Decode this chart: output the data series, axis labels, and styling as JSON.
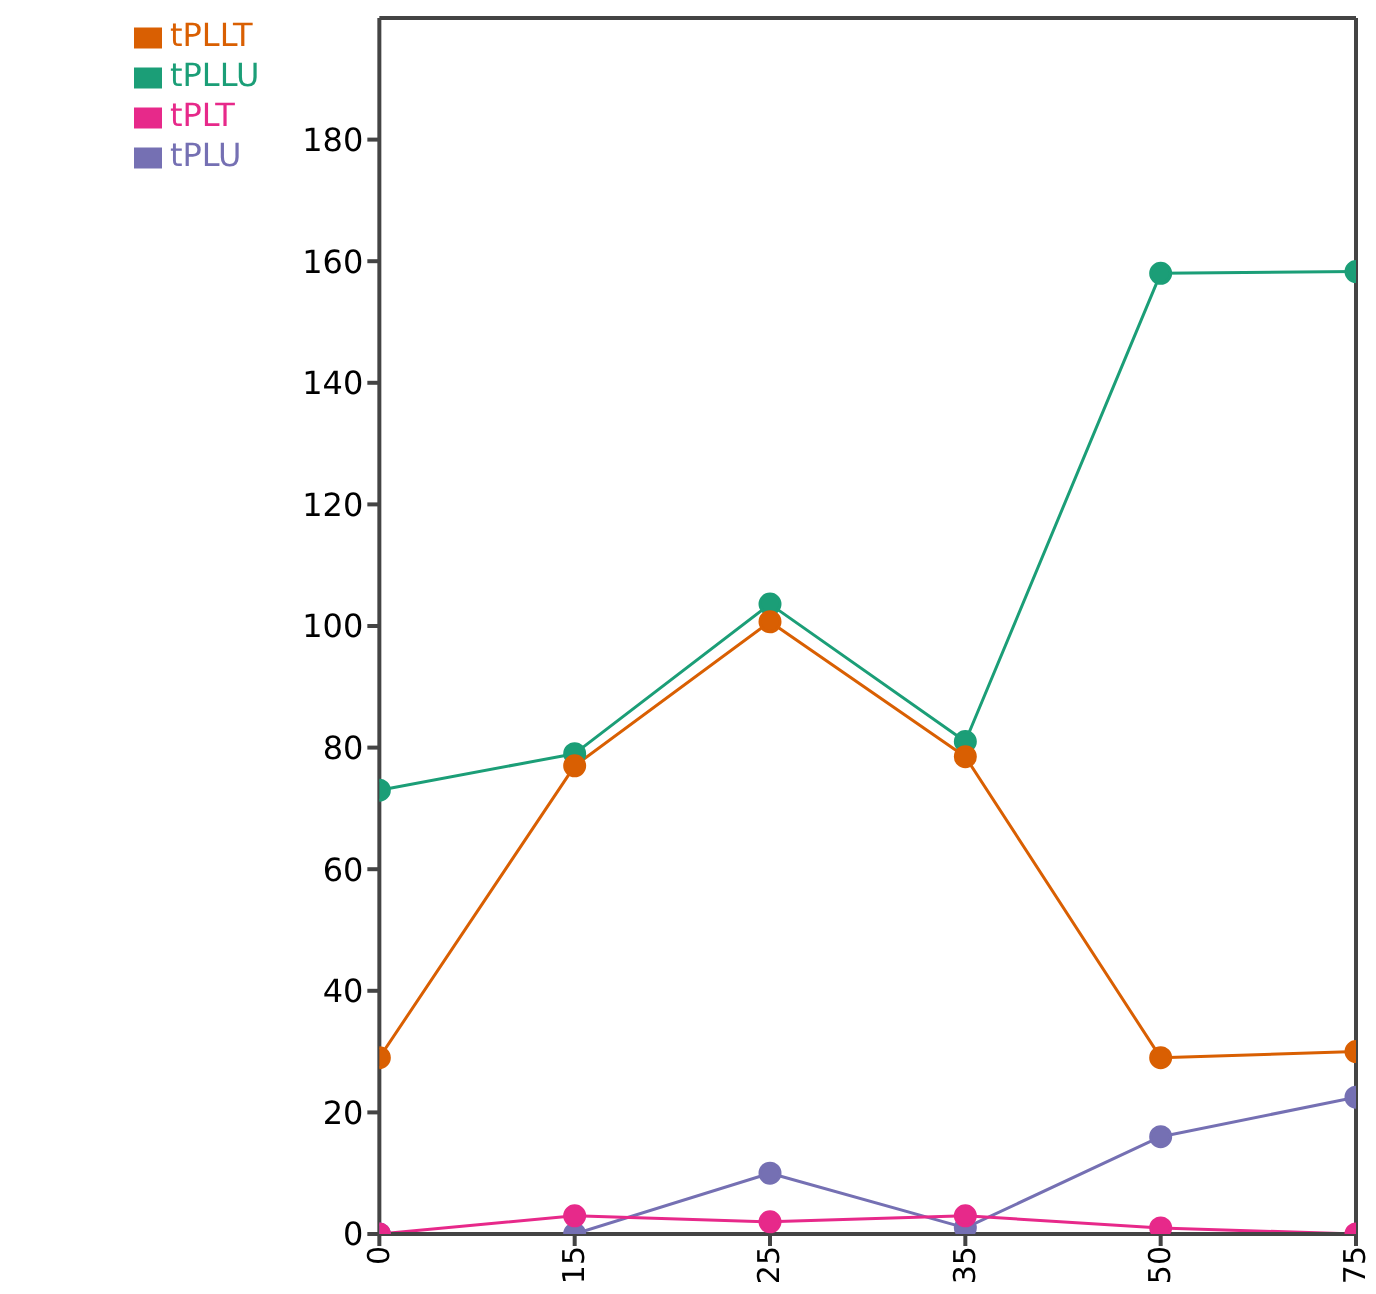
{
  "chart_data": {
    "type": "line",
    "categories": [
      "0",
      "15",
      "25",
      "35",
      "50",
      "75"
    ],
    "series": [
      {
        "name": "tPLLU",
        "color": "#1b9e77",
        "values": [
          73,
          79,
          103.6,
          81,
          158,
          158.3
        ]
      },
      {
        "name": "tPLLT",
        "color": "#d95f02",
        "values": [
          29,
          77,
          100.7,
          78.5,
          29,
          30
        ]
      },
      {
        "name": "tPLU",
        "color": "#7570b3",
        "values": [
          0,
          0,
          10,
          1,
          16,
          22.5
        ]
      },
      {
        "name": "tPLT",
        "color": "#e7298a",
        "values": [
          0,
          3,
          2,
          3,
          1,
          0
        ]
      }
    ],
    "ylim": [
      0,
      200
    ],
    "yticks": [
      0,
      20,
      40,
      60,
      80,
      100,
      120,
      140,
      160,
      180
    ],
    "grid": false,
    "legend": "top left",
    "marker": "circle",
    "line_style": "solid"
  }
}
